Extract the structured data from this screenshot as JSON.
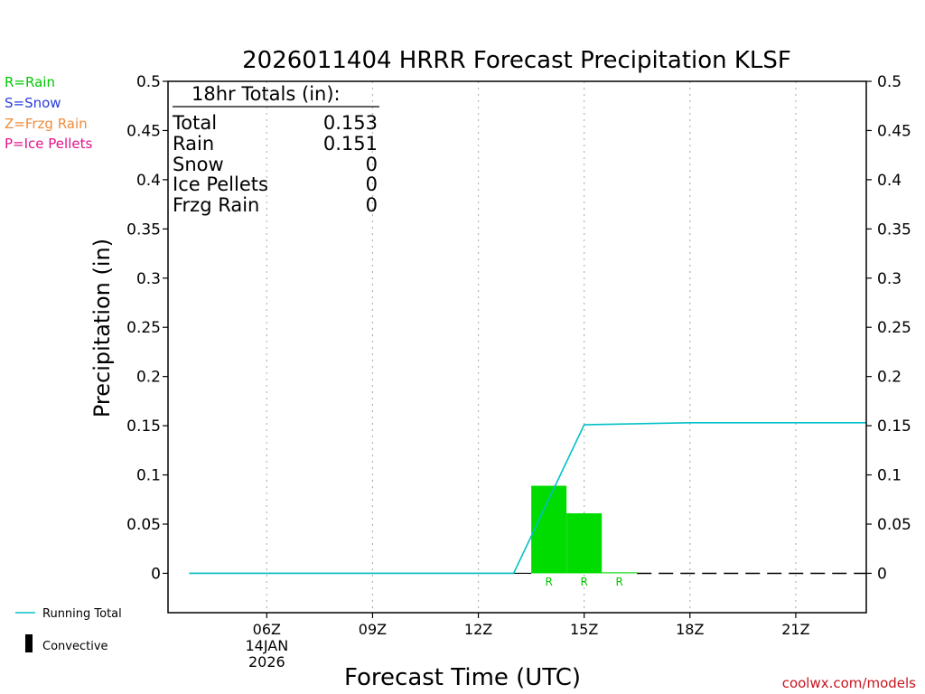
{
  "legend": {
    "precip_types": [
      {
        "label": "R=Rain",
        "color": "#00c800"
      },
      {
        "label": "S=Snow",
        "color": "#2a3cd8"
      },
      {
        "label": "Z=Frzg Rain",
        "color": "#f08c3c"
      },
      {
        "label": "P=Ice Pellets",
        "color": "#e0148c"
      }
    ],
    "running_total": "Running Total",
    "convective": "Convective"
  },
  "totals": {
    "heading": "18hr Totals (in):",
    "rows": [
      {
        "label": "Total",
        "value": "0.153"
      },
      {
        "label": "Rain",
        "value": "0.151"
      },
      {
        "label": "Snow",
        "value": "0"
      },
      {
        "label": "Ice Pellets",
        "value": "0"
      },
      {
        "label": "Frzg Rain",
        "value": "0"
      }
    ]
  },
  "credit": "coolwx.com/models",
  "colors": {
    "rain_bar": "#00dc00",
    "running_total": "#00c0c8",
    "axis": "#000000",
    "grid": "#b4b4b4",
    "credit": "#c8141e",
    "rain_label": "#00c800"
  },
  "chart_data": {
    "type": "bar",
    "title": "2026011404 HRRR Forecast Precipitation KLSF",
    "xlabel": "Forecast Time (UTC)",
    "ylabel": "Precipitation (in)",
    "ylim": [
      -0.04,
      0.5
    ],
    "xlim_hours_utc": [
      3.2,
      23.0
    ],
    "grid": "vertical-dotted",
    "yticks": [
      0,
      0.05,
      0.1,
      0.15,
      0.2,
      0.25,
      0.3,
      0.35,
      0.4,
      0.45,
      0.5
    ],
    "ytick_labels": [
      "0",
      "0.05",
      "0.1",
      "0.15",
      "0.2",
      "0.25",
      "0.3",
      "0.35",
      "0.4",
      "0.45",
      "0.5"
    ],
    "xticks": [
      {
        "hour": 6,
        "label": "06Z",
        "sublabels": [
          "14JAN",
          "2026"
        ]
      },
      {
        "hour": 9,
        "label": "09Z",
        "sublabels": []
      },
      {
        "hour": 12,
        "label": "12Z",
        "sublabels": []
      },
      {
        "hour": 15,
        "label": "15Z",
        "sublabels": []
      },
      {
        "hour": 18,
        "label": "18Z",
        "sublabels": []
      },
      {
        "hour": 21,
        "label": "21Z",
        "sublabels": []
      }
    ],
    "bars": [
      {
        "start": 13.5,
        "end": 14.5,
        "value": 0.089,
        "type_label": "R",
        "label_hour": 14
      },
      {
        "start": 14.5,
        "end": 15.5,
        "value": 0.061,
        "type_label": "R",
        "label_hour": 15
      },
      {
        "start": 15.5,
        "end": 16.5,
        "value": 0.001,
        "type_label": "R",
        "label_hour": 16
      }
    ],
    "running_total": {
      "name": "Running Total",
      "x": [
        3.8,
        13.0,
        15.0,
        18.0,
        23.0
      ],
      "y": [
        0,
        0,
        0.151,
        0.153,
        0.153
      ]
    },
    "baseline_dashed": {
      "x": [
        16.5,
        23.0
      ],
      "y": 0
    }
  }
}
